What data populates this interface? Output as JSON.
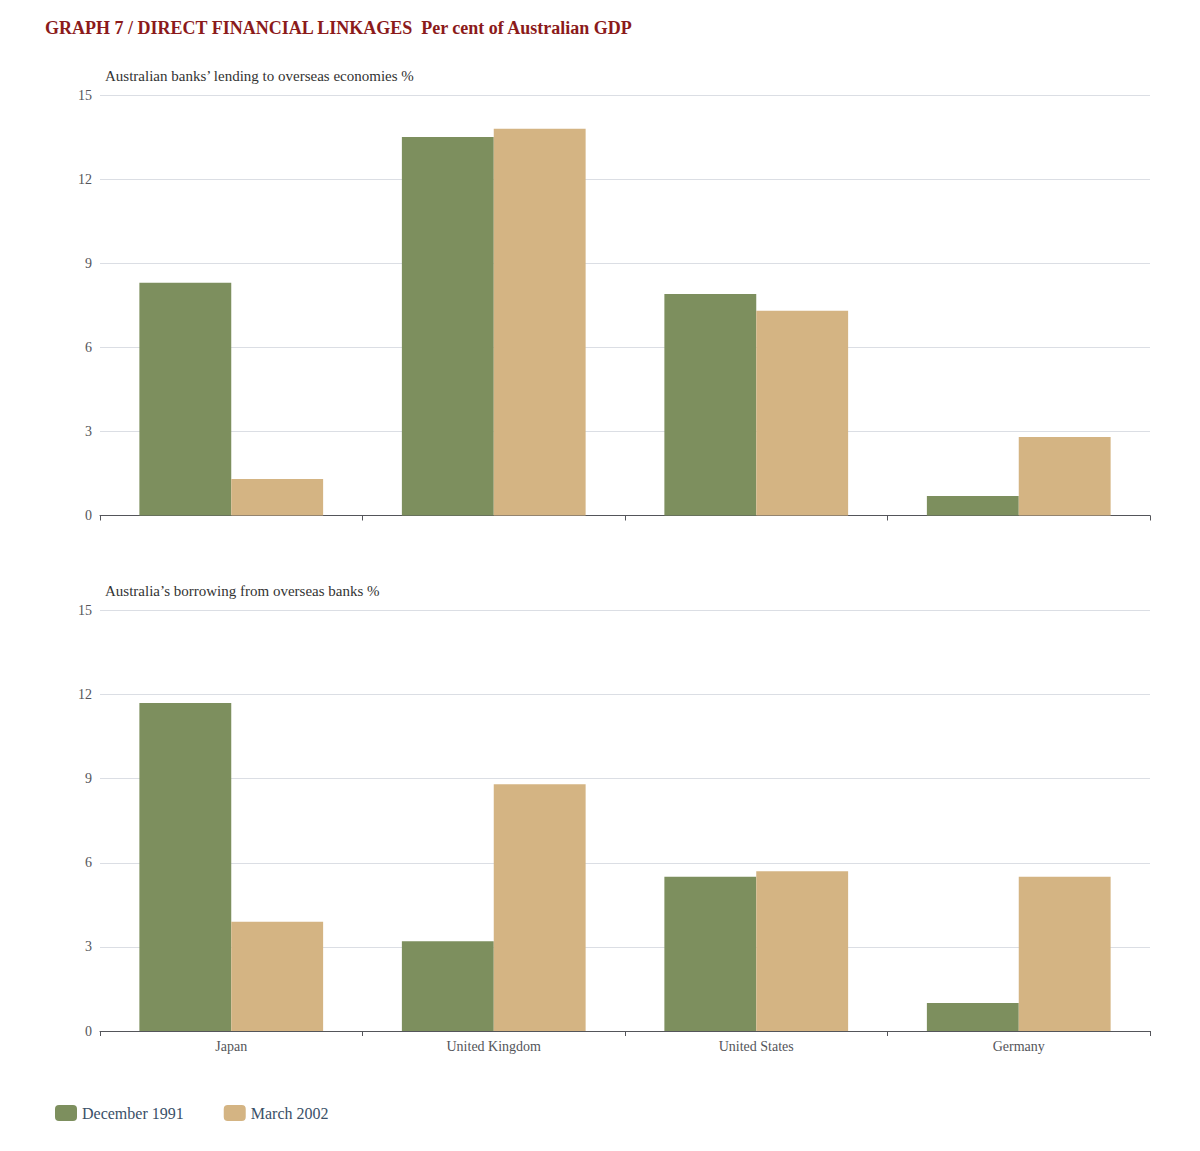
{
  "chart_data": [
    {
      "type": "bar",
      "title": "GRAPH 7 / DIRECT FINANCIAL LINKAGES  Per cent of Australian GDP",
      "subtitle": "Australian banks’ lending to overseas economies %",
      "categories": [
        "Japan",
        "United Kingdom",
        "United States",
        "Germany"
      ],
      "series": [
        {
          "name": "December 1991",
          "color": "#7d8f5e",
          "values": [
            8.3,
            13.5,
            7.9,
            0.7
          ]
        },
        {
          "name": "March 2002",
          "color": "#d4b483",
          "values": [
            1.3,
            13.8,
            7.3,
            2.8
          ]
        }
      ],
      "ylim": [
        0,
        15
      ],
      "yticks": [
        0,
        3,
        6,
        9,
        12,
        15
      ],
      "grid": true,
      "tick_labels": "y"
    },
    {
      "type": "bar",
      "subtitle": "Australia’s borrowing from overseas banks %",
      "categories": [
        "Japan",
        "United Kingdom",
        "United States",
        "Germany"
      ],
      "series": [
        {
          "name": "December 1991",
          "color": "#7d8f5e",
          "values": [
            11.7,
            3.2,
            5.5,
            1.0
          ]
        },
        {
          "name": "March 2002",
          "color": "#d4b483",
          "values": [
            3.9,
            8.8,
            5.7,
            5.5
          ]
        }
      ],
      "ylim": [
        0,
        15
      ],
      "yticks": [
        0,
        3,
        6,
        9,
        12,
        15
      ],
      "grid": true,
      "legend": "lower left"
    }
  ]
}
